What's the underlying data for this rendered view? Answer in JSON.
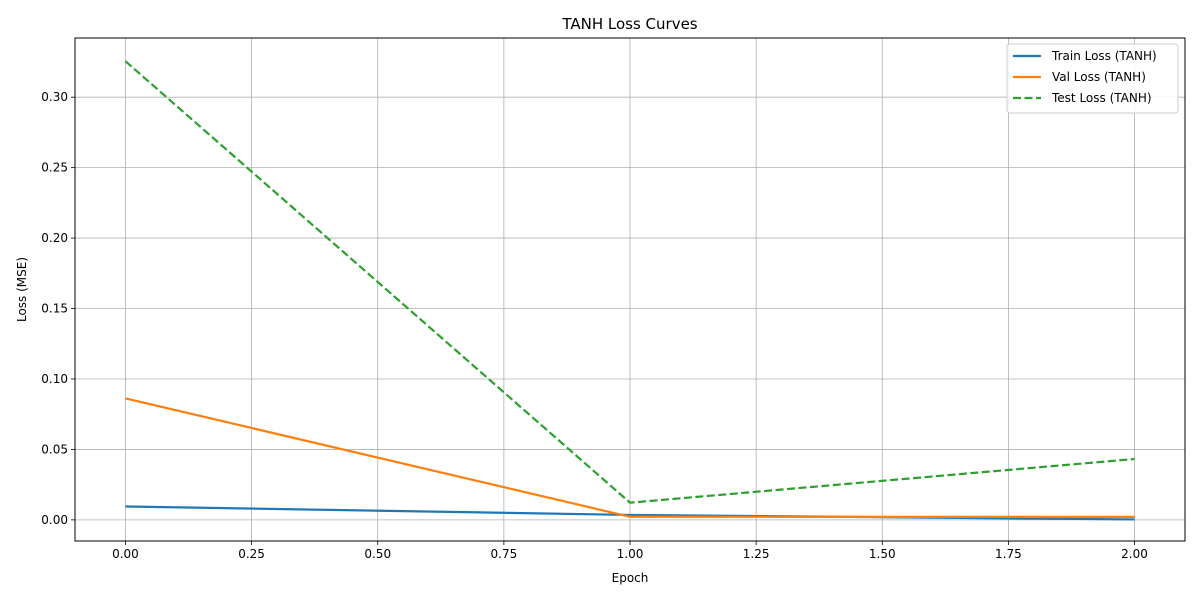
{
  "chart_data": {
    "type": "line",
    "title": "TANH Loss Curves",
    "xlabel": "Epoch",
    "ylabel": "Loss (MSE)",
    "xlim": [
      -0.1,
      2.1
    ],
    "ylim": [
      -0.015,
      0.342
    ],
    "xticks": [
      0.0,
      0.25,
      0.5,
      0.75,
      1.0,
      1.25,
      1.5,
      1.75,
      2.0
    ],
    "xtick_labels": [
      "0.00",
      "0.25",
      "0.50",
      "0.75",
      "1.00",
      "1.25",
      "1.50",
      "1.75",
      "2.00"
    ],
    "yticks": [
      0.0,
      0.05,
      0.1,
      0.15,
      0.2,
      0.25,
      0.3
    ],
    "ytick_labels": [
      "0.00",
      "0.05",
      "0.10",
      "0.15",
      "0.20",
      "0.25",
      "0.30"
    ],
    "grid": true,
    "legend_position": "top-right",
    "x": [
      0,
      1,
      2
    ],
    "series": [
      {
        "name": "Train Loss (TANH)",
        "values": [
          0.0095,
          0.0035,
          0.0003
        ],
        "color": "#1f77b4",
        "dashed": false
      },
      {
        "name": "Val Loss (TANH)",
        "values": [
          0.0862,
          0.0022,
          0.0021
        ],
        "color": "#ff7f0e",
        "dashed": false
      },
      {
        "name": "Test Loss (TANH)",
        "values": [
          0.3255,
          0.0122,
          0.0432
        ],
        "color": "#2ca02c",
        "dashed": true
      }
    ]
  }
}
